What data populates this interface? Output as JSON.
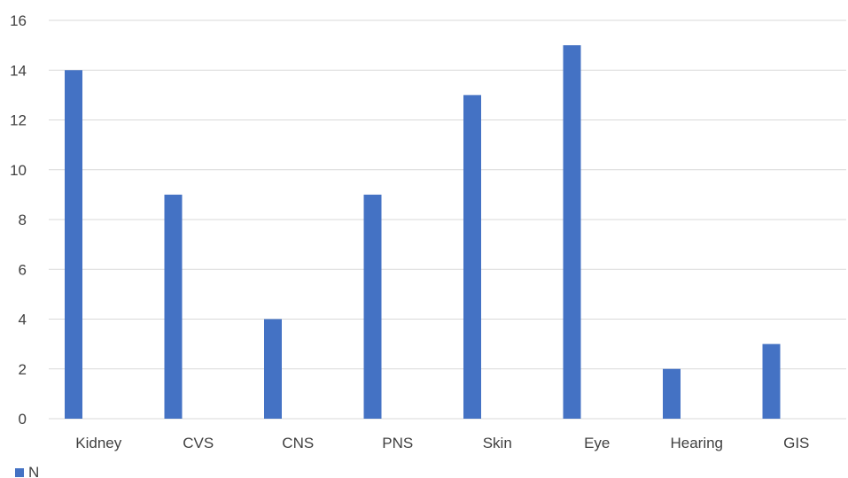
{
  "chart_data": {
    "type": "bar",
    "categories": [
      "Kidney",
      "CVS",
      "CNS",
      "PNS",
      "Skin",
      "Eye",
      "Hearing",
      "GIS"
    ],
    "series": [
      {
        "name": "N",
        "values": [
          14,
          9,
          4,
          9,
          13,
          15,
          2,
          3
        ],
        "color": "#4472C4"
      }
    ],
    "ylim": [
      0,
      16
    ],
    "yticks": [
      "0",
      "2",
      "4",
      "6",
      "8",
      "10",
      "12",
      "14",
      "16"
    ],
    "grid": true,
    "legend": {
      "position": "bottom-left",
      "label": "N"
    }
  }
}
